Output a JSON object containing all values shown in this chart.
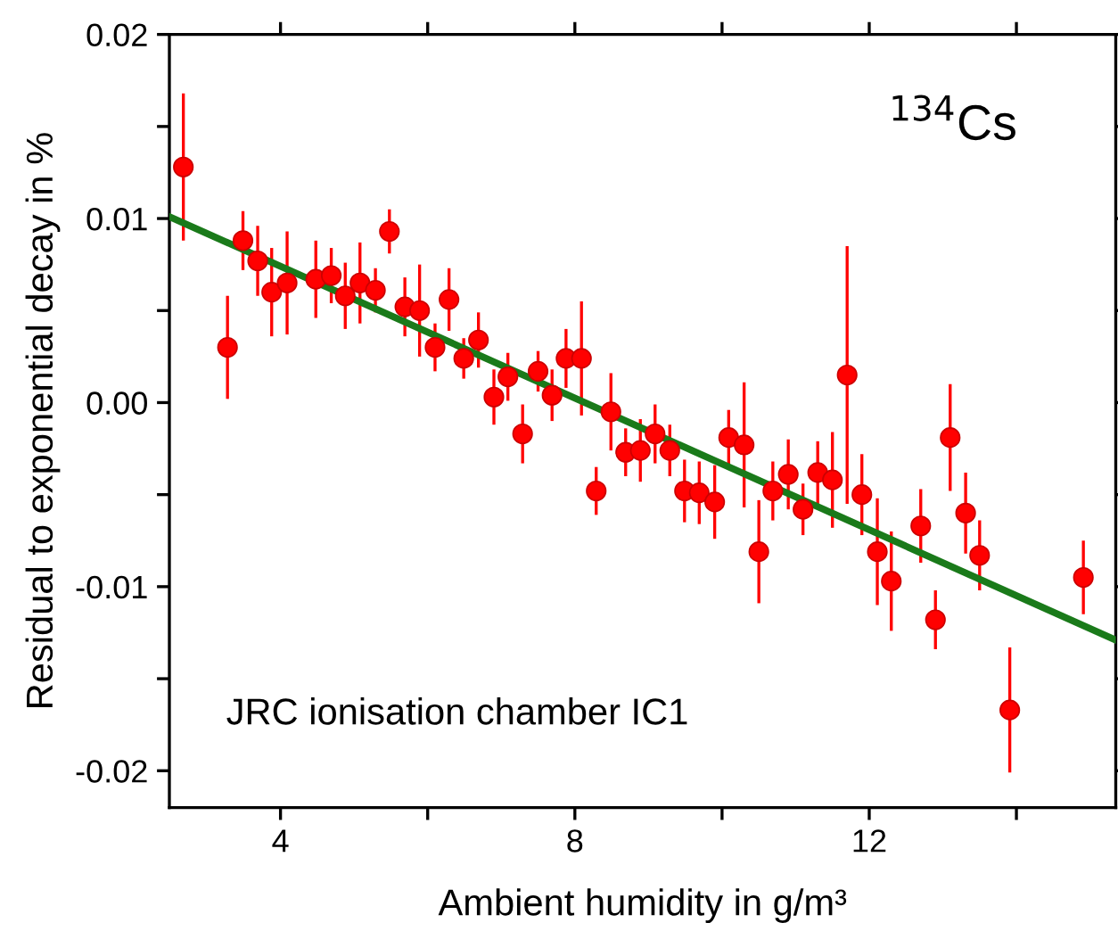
{
  "chart_data": {
    "type": "scatter",
    "xlabel": "Ambient humidity in g/m³",
    "ylabel": "Residual to exponential decay in %",
    "annotations": [
      "$^{134}$Cs",
      "JRC ionisation chamber IC1"
    ],
    "xlim": [
      2.49,
      15.35
    ],
    "ylim": [
      -0.022,
      0.02
    ],
    "xticks": [
      4,
      {
        "value": 6,
        "label": null
      },
      8,
      {
        "value": 10,
        "label": null
      },
      12,
      {
        "value": 14,
        "label": null
      }
    ],
    "yticks": [
      {
        "value": -0.02,
        "label": "-0.02"
      },
      {
        "value": -0.015,
        "label": null
      },
      {
        "value": -0.01,
        "label": "-0.01"
      },
      {
        "value": -0.005,
        "label": null
      },
      {
        "value": 0,
        "label": "0.00"
      },
      {
        "value": 0.005,
        "label": null
      },
      {
        "value": 0.01,
        "label": "0.01"
      },
      {
        "value": 0.015,
        "label": null
      },
      {
        "value": 0.02,
        "label": "0.02"
      }
    ],
    "grid": false,
    "legend": false,
    "marker": "circle",
    "series": [
      {
        "color": "#ff0000",
        "x": [
          2.68,
          3.28,
          3.49,
          3.69,
          3.88,
          4.09,
          4.48,
          4.69,
          4.88,
          5.08,
          5.29,
          5.48,
          5.69,
          5.89,
          6.1,
          6.29,
          6.49,
          6.69,
          6.9,
          7.09,
          7.29,
          7.5,
          7.69,
          7.88,
          8.09,
          8.29,
          8.49,
          8.69,
          8.89,
          9.09,
          9.29,
          9.49,
          9.69,
          9.9,
          10.09,
          10.3,
          10.5,
          10.69,
          10.9,
          11.1,
          11.3,
          11.5,
          11.7,
          11.9,
          12.11,
          12.3,
          12.7,
          12.9,
          13.1,
          13.31,
          13.5,
          13.91,
          14.91
        ],
        "values": [
          0.0128,
          0.003,
          0.0088,
          0.0077,
          0.006,
          0.0065,
          0.0067,
          0.0069,
          0.0058,
          0.0065,
          0.0061,
          0.0093,
          0.0052,
          0.005,
          0.003,
          0.0056,
          0.0024,
          0.0034,
          0.0003,
          0.0014,
          -0.0017,
          0.0017,
          0.0004,
          0.0024,
          0.0024,
          -0.0048,
          -0.0005,
          -0.0027,
          -0.0026,
          -0.0017,
          -0.0026,
          -0.0048,
          -0.0049,
          -0.0054,
          -0.0019,
          -0.0023,
          -0.0081,
          -0.0048,
          -0.0039,
          -0.0058,
          -0.0038,
          -0.0042,
          0.0015,
          -0.005,
          -0.0081,
          -0.0097,
          -0.0067,
          -0.0118,
          -0.0019,
          -0.006,
          -0.0083,
          -0.0167,
          -0.0095
        ],
        "errors": [
          0.004,
          0.0028,
          0.0016,
          0.0019,
          0.0024,
          0.0028,
          0.0021,
          0.0015,
          0.0018,
          0.0022,
          0.0012,
          0.0012,
          0.0016,
          0.0025,
          0.0013,
          0.0017,
          0.0011,
          0.0015,
          0.0015,
          0.0013,
          0.0016,
          0.0011,
          0.0014,
          0.0016,
          0.0031,
          0.0013,
          0.0021,
          0.0013,
          0.0017,
          0.0016,
          0.0014,
          0.0017,
          0.0017,
          0.002,
          0.0015,
          0.0034,
          0.0028,
          0.0016,
          0.0019,
          0.0014,
          0.0017,
          0.0026,
          0.007,
          0.0022,
          0.0029,
          0.0027,
          0.002,
          0.0016,
          0.0029,
          0.0022,
          0.0019,
          0.0034,
          0.002
        ]
      },
      {
        "type": "line",
        "color": "#1a7a1a",
        "marker": "none",
        "line_style": "solid",
        "x": [
          2.49,
          15.35
        ],
        "values": [
          0.0101,
          -0.0129
        ]
      }
    ]
  }
}
